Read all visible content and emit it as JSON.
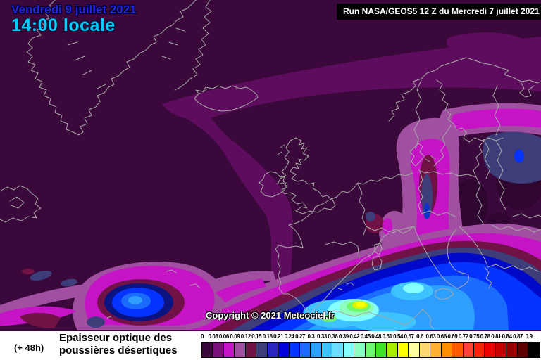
{
  "header": {
    "date_line1": "Vendredi 9 juillet 2021",
    "date_line2": "14:00 locale",
    "run_info": "Run NASA/GEOS5 12 Z du Mercredi 7 juillet 2021"
  },
  "map": {
    "copyright": "Copyright © 2021 Meteociel.fr",
    "region": "Europe / Atlantique nord"
  },
  "legend": {
    "forecast_offset": "(+ 48h)",
    "title_line1": "Epaisseur optique des",
    "title_line2": "poussières désertiques",
    "ticks": [
      "0",
      "0.03",
      "0.06",
      "0.09",
      "0.12",
      "0.15",
      "0.18",
      "0.21",
      "0.24",
      "0.27",
      "0.3",
      "0.33",
      "0.36",
      "0.39",
      "0.42",
      "0.45",
      "0.48",
      "0.51",
      "0.54",
      "0.57",
      "0.6",
      "0.63",
      "0.66",
      "0.69",
      "0.72",
      "0.75",
      "0.78",
      "0.81",
      "0.84",
      "0.87",
      "0.9"
    ],
    "colors": [
      "#3A083A",
      "#7A107A",
      "#C613C6",
      "#A150A1",
      "#701245",
      "#3D3D7A",
      "#2828C0",
      "#0000DC",
      "#0533FF",
      "#1B6BFF",
      "#2E9FFF",
      "#3DC3FF",
      "#6ADEFF",
      "#86FFFF",
      "#8CFFBE",
      "#6EF86E",
      "#3BE227",
      "#A8EC00",
      "#FFFF00",
      "#FFFFA0",
      "#FFD970",
      "#FFB133",
      "#FF8D00",
      "#FF5A00",
      "#FF4433",
      "#FF2400",
      "#EE0000",
      "#C40000",
      "#960000",
      "#5E0000",
      "#000000"
    ]
  },
  "colors": {
    "map_background": "#3A083A",
    "coastline": "#A8A8A8",
    "date_line1_text": "#2326E0",
    "date_line2_text": "#00CCFF",
    "run_box_background": "#000000",
    "run_box_text": "#FFFFFF",
    "legend_background": "#FFFFFF"
  }
}
